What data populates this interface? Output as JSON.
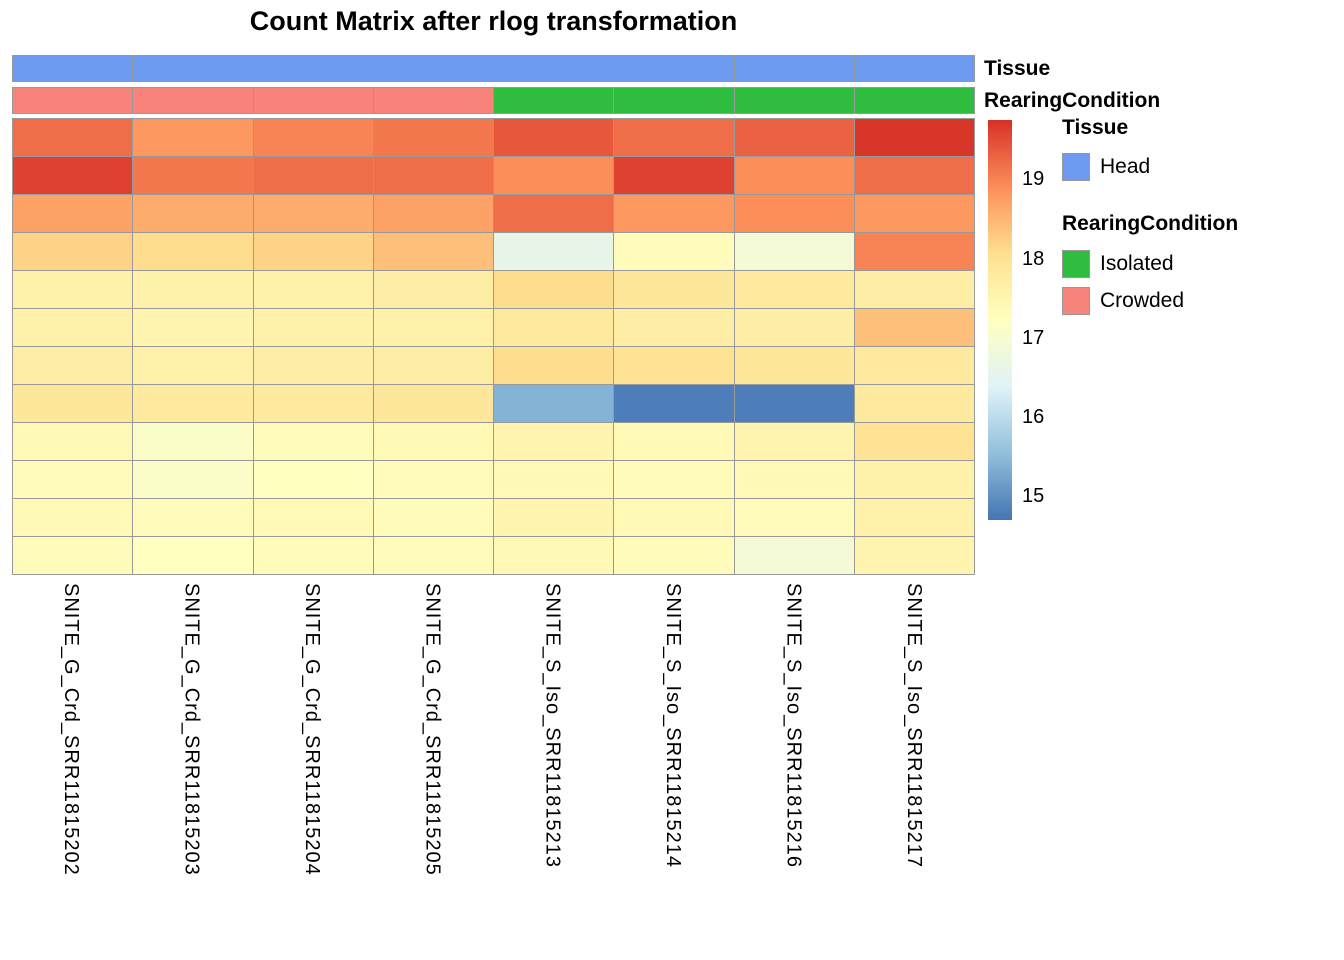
{
  "title": "Count Matrix after rlog transformation",
  "annotation_rows": {
    "tissue": {
      "label": "Tissue"
    },
    "rearing": {
      "label": "RearingCondition"
    }
  },
  "annotation_colors": {
    "Head": "#6D9BF1",
    "Isolated": "#2EBD3E",
    "Crowded": "#F8837B"
  },
  "legend": {
    "tissue_header": "Tissue",
    "tissue_items": [
      {
        "label": "Head",
        "color": "#6D9BF1"
      }
    ],
    "rearing_header": "RearingCondition",
    "rearing_items": [
      {
        "label": "Isolated",
        "color": "#2EBD3E"
      },
      {
        "label": "Crowded",
        "color": "#F8837B"
      }
    ]
  },
  "colorbar": {
    "vmin": 14.7,
    "vmax": 19.75,
    "ticks": [
      "19",
      "18",
      "17",
      "16",
      "15"
    ],
    "tick_values": [
      19,
      18,
      17,
      16,
      15
    ]
  },
  "chart_data": {
    "type": "heatmap",
    "title": "Count Matrix after rlog transformation",
    "columns": [
      "SNITE_G_Crd_SRR11815202",
      "SNITE_G_Crd_SRR11815203",
      "SNITE_G_Crd_SRR11815204",
      "SNITE_G_Crd_SRR11815205",
      "SNITE_S_Iso_SRR11815213",
      "SNITE_S_Iso_SRR11815214",
      "SNITE_S_Iso_SRR11815216",
      "SNITE_S_Iso_SRR11815217"
    ],
    "column_annotations": {
      "Tissue": [
        "Head",
        "Head",
        "Head",
        "Head",
        "Head",
        "Head",
        "Head",
        "Head"
      ],
      "RearingCondition": [
        "Crowded",
        "Crowded",
        "Crowded",
        "Crowded",
        "Isolated",
        "Isolated",
        "Isolated",
        "Isolated"
      ]
    },
    "values": [
      [
        19.2,
        18.8,
        19.0,
        19.1,
        19.4,
        19.2,
        19.3,
        19.7
      ],
      [
        19.6,
        19.1,
        19.2,
        19.2,
        18.9,
        19.6,
        18.9,
        19.2
      ],
      [
        18.7,
        18.6,
        18.6,
        18.7,
        19.2,
        18.8,
        18.9,
        18.8
      ],
      [
        18.2,
        18.1,
        18.2,
        18.4,
        16.6,
        17.3,
        16.9,
        19.0
      ],
      [
        17.6,
        17.6,
        17.6,
        17.7,
        18.1,
        17.9,
        17.8,
        17.7
      ],
      [
        17.6,
        17.5,
        17.6,
        17.6,
        17.8,
        17.7,
        17.7,
        18.4
      ],
      [
        17.7,
        17.6,
        17.7,
        17.7,
        18.1,
        18.0,
        17.9,
        17.8
      ],
      [
        17.9,
        17.8,
        17.8,
        17.9,
        15.4,
        14.8,
        14.8,
        17.8
      ],
      [
        17.4,
        17.1,
        17.3,
        17.4,
        17.5,
        17.4,
        17.5,
        18.0
      ],
      [
        17.3,
        17.1,
        17.2,
        17.3,
        17.4,
        17.3,
        17.4,
        17.6
      ],
      [
        17.4,
        17.3,
        17.4,
        17.3,
        17.5,
        17.4,
        17.3,
        17.6
      ],
      [
        17.3,
        17.2,
        17.3,
        17.3,
        17.4,
        17.3,
        16.9,
        17.5
      ]
    ],
    "color_scale": {
      "vmin": 14.7,
      "vmax": 19.75,
      "stops": [
        [
          14.7,
          "#4575B4"
        ],
        [
          15.54,
          "#91BFDB"
        ],
        [
          16.38,
          "#E0F3F8"
        ],
        [
          17.23,
          "#FFFFBF"
        ],
        [
          18.07,
          "#FEE090"
        ],
        [
          18.91,
          "#FC8D59"
        ],
        [
          19.75,
          "#D73027"
        ]
      ]
    },
    "legend_position": "right",
    "grid": true,
    "row_labels_shown": false
  }
}
